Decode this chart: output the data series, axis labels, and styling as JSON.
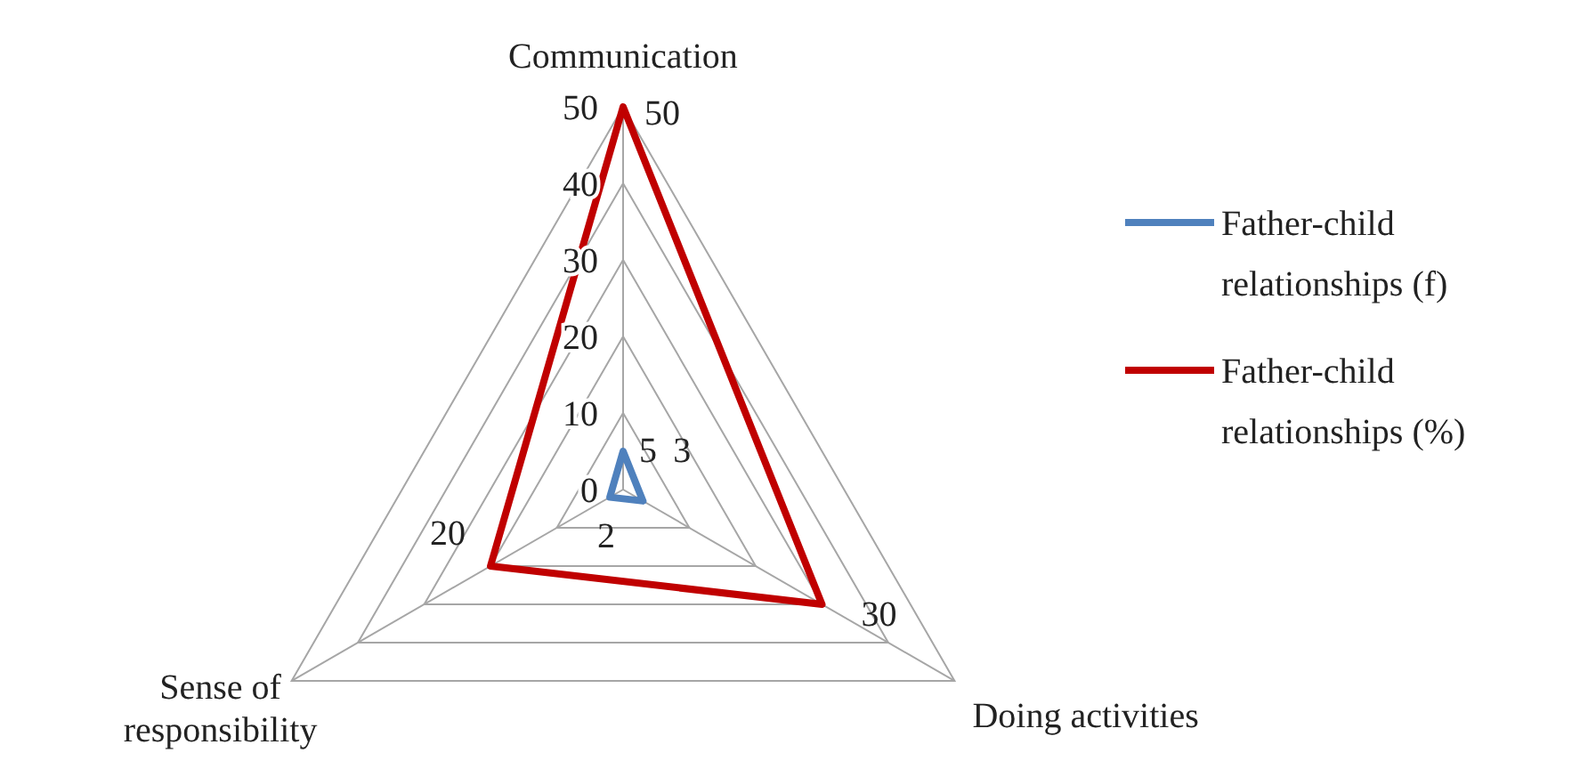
{
  "chart_data": {
    "type": "radar",
    "categories": [
      "Communication",
      "Doing activities",
      "Sense of responsibility"
    ],
    "series": [
      {
        "name": "Father-child relationships (f)",
        "color": "#4f81bd",
        "values": [
          5,
          3,
          2
        ]
      },
      {
        "name": "Father-child relationships (%)",
        "color": "#c00000",
        "values": [
          50,
          30,
          20
        ]
      }
    ],
    "ylim": [
      0,
      50
    ],
    "yticks": [
      0,
      10,
      20,
      30,
      40,
      50
    ],
    "grid": true,
    "legend": "right",
    "data_labels": true,
    "marker": "none"
  }
}
